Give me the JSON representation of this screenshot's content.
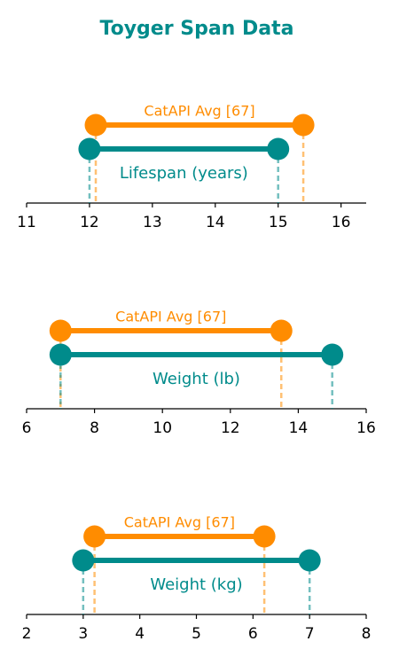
{
  "title": "Toyger Span Data",
  "chart_data": [
    {
      "type": "dumbbell",
      "xlim": [
        11,
        16.4
      ],
      "xticks": [
        11,
        12,
        13,
        14,
        15,
        16
      ],
      "series": [
        {
          "name": "CatAPI Avg [67]",
          "color": "#ff8c00",
          "values": [
            12.1,
            15.4
          ]
        },
        {
          "name": "Lifespan (years)",
          "color": "#008b8b",
          "values": [
            12,
            15
          ]
        }
      ]
    },
    {
      "type": "dumbbell",
      "xlim": [
        6,
        16
      ],
      "xticks": [
        6,
        8,
        10,
        12,
        14,
        16
      ],
      "series": [
        {
          "name": "CatAPI Avg [67]",
          "color": "#ff8c00",
          "values": [
            7,
            13.5
          ]
        },
        {
          "name": "Weight (lb)",
          "color": "#008b8b",
          "values": [
            7,
            15
          ]
        }
      ]
    },
    {
      "type": "dumbbell",
      "xlim": [
        2,
        8
      ],
      "xticks": [
        2,
        3,
        4,
        5,
        6,
        7,
        8
      ],
      "series": [
        {
          "name": "CatAPI Avg [67]",
          "color": "#ff8c00",
          "values": [
            3.2,
            6.2
          ]
        },
        {
          "name": "Weight (kg)",
          "color": "#008b8b",
          "values": [
            3,
            7
          ]
        }
      ]
    }
  ]
}
